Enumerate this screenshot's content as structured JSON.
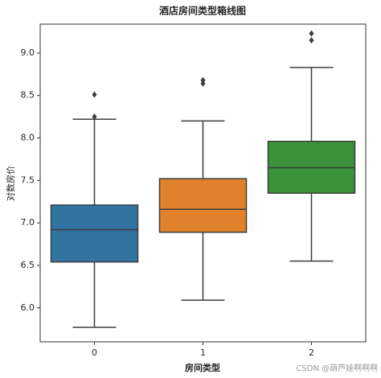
{
  "chart_data": {
    "type": "box",
    "title": "酒店房间类型箱线图",
    "x_label": "房间类型",
    "y_label": "对数房价",
    "categories": [
      "0",
      "1",
      "2"
    ],
    "colors": [
      "#3274a1",
      "#e1812c",
      "#3a923a"
    ],
    "boxes": [
      {
        "min": 5.77,
        "q1": 6.54,
        "median": 6.92,
        "q3": 7.21,
        "max": 8.22,
        "outliers": [
          8.25,
          8.51
        ]
      },
      {
        "min": 6.09,
        "q1": 6.89,
        "median": 7.16,
        "q3": 7.52,
        "max": 8.2,
        "outliers": [
          8.64,
          8.68
        ]
      },
      {
        "min": 6.55,
        "q1": 7.35,
        "median": 7.65,
        "q3": 7.96,
        "max": 8.83,
        "outliers": [
          9.15,
          9.23
        ]
      }
    ],
    "ylim": [
      5.6,
      9.34
    ],
    "yticks": [
      {
        "value": 6,
        "label": "6.0"
      },
      {
        "value": 6.5,
        "label": "6.5"
      },
      {
        "value": 7,
        "label": "7.0"
      },
      {
        "value": 7.5,
        "label": "7.5"
      },
      {
        "value": 8,
        "label": "8.0"
      },
      {
        "value": 8.5,
        "label": "8.5"
      },
      {
        "value": 9,
        "label": "9.0"
      }
    ],
    "watermark": "CSDN @葫芦娃啊啊啊"
  }
}
